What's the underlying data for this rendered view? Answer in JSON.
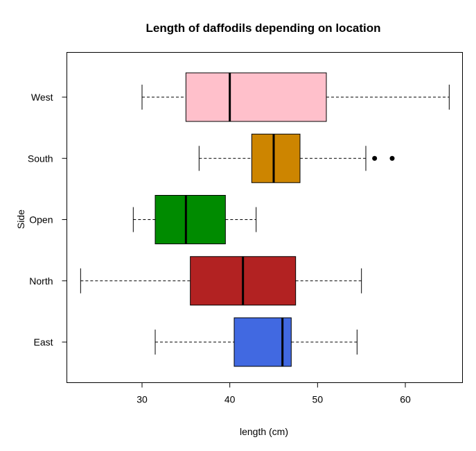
{
  "chart_data": {
    "type": "boxplot",
    "orientation": "horizontal",
    "title": "Length of daffodils depending on location",
    "xlabel": "length (cm)",
    "ylabel": "Side",
    "xlim": [
      21.5,
      66.5
    ],
    "xticks": [
      30,
      40,
      50,
      60
    ],
    "grid": false,
    "categories": [
      "East",
      "North",
      "Open",
      "South",
      "West"
    ],
    "boxes": [
      {
        "name": "East",
        "whisker_low": 31.5,
        "q1": 40.5,
        "median": 46.0,
        "q3": 47.0,
        "whisker_high": 54.5,
        "outliers": [],
        "color": "#4169E1"
      },
      {
        "name": "North",
        "whisker_low": 23.0,
        "q1": 35.5,
        "median": 41.5,
        "q3": 47.5,
        "whisker_high": 55.0,
        "outliers": [],
        "color": "#B22222"
      },
      {
        "name": "Open",
        "whisker_low": 29.0,
        "q1": 31.5,
        "median": 35.0,
        "q3": 39.5,
        "whisker_high": 43.0,
        "outliers": [],
        "color": "#008B00"
      },
      {
        "name": "South",
        "whisker_low": 36.5,
        "q1": 42.5,
        "median": 45.0,
        "q3": 48.0,
        "whisker_high": 55.5,
        "outliers": [
          56.5,
          58.5
        ],
        "color": "#CD8500"
      },
      {
        "name": "West",
        "whisker_low": 30.0,
        "q1": 35.0,
        "median": 40.0,
        "q3": 51.0,
        "whisker_high": 65.0,
        "outliers": [],
        "color": "#FFC0CB"
      }
    ]
  }
}
